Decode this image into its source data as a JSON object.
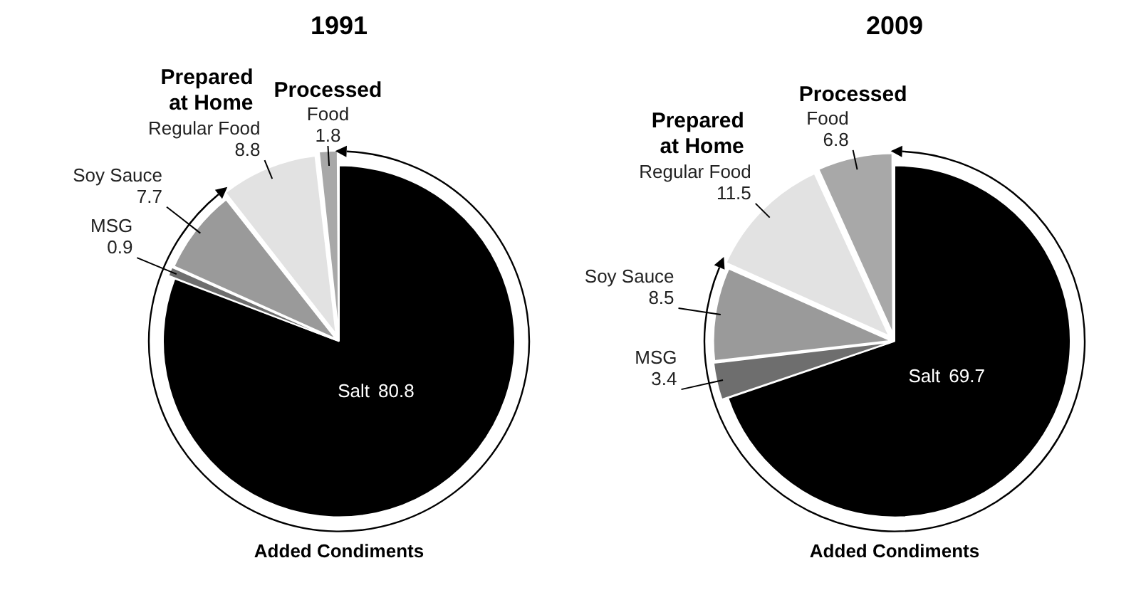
{
  "chart_data": [
    {
      "type": "pie",
      "title": "1991",
      "categories": [
        "Salt",
        "MSG",
        "Soy Sauce",
        "Regular Food",
        "Food"
      ],
      "values": [
        80.8,
        0.9,
        7.7,
        8.8,
        1.8
      ],
      "colors": [
        "#000000",
        "#6e6e6e",
        "#9a9a9a",
        "#e2e2e2",
        "#a8a8a8"
      ],
      "data_labels": true,
      "legend": false,
      "annotations": [
        "Prepared at Home",
        "Processed",
        "Added Condiments"
      ]
    },
    {
      "type": "pie",
      "title": "2009",
      "categories": [
        "Salt",
        "MSG",
        "Soy Sauce",
        "Regular Food",
        "Food"
      ],
      "values": [
        69.7,
        3.4,
        8.5,
        11.5,
        6.8
      ],
      "colors": [
        "#000000",
        "#6e6e6e",
        "#9a9a9a",
        "#e2e2e2",
        "#a8a8a8"
      ],
      "data_labels": true,
      "legend": false,
      "annotations": [
        "Prepared at Home",
        "Processed",
        "Added Condiments"
      ]
    }
  ]
}
